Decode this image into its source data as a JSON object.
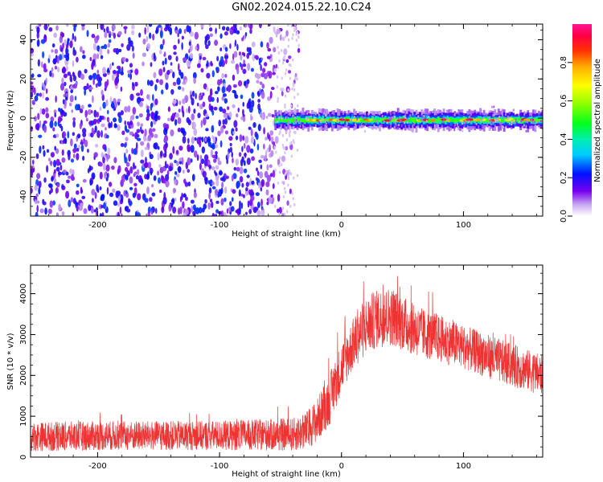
{
  "title": "GN02.2024.015.22.10.C24",
  "chart_data": [
    {
      "type": "heatmap",
      "xlabel": "Height of straight line (km)",
      "ylabel": "Frequency (Hz)",
      "xlim": [
        -255,
        165
      ],
      "ylim": [
        -50,
        48
      ],
      "xticks": [
        -200,
        -100,
        0,
        100
      ],
      "yticks": [
        -40,
        -20,
        0,
        20,
        40
      ],
      "colorbar": {
        "label": "Normalized spectral amplitude",
        "range": [
          0.0,
          1.0
        ],
        "ticks": [
          "0.0",
          "0.2",
          "0.4",
          "0.6",
          "0.8"
        ],
        "colormap": "gist_ncar_like"
      },
      "regions": [
        {
          "x": [
            -255,
            -55
          ],
          "freq": [
            -50,
            48
          ],
          "amplitude": [
            0.05,
            0.25
          ],
          "description": "broadband noise"
        },
        {
          "x": [
            -55,
            165
          ],
          "freq": [
            -4,
            2
          ],
          "amplitude": [
            0.3,
            0.95
          ],
          "center_freq": -1
        }
      ]
    },
    {
      "type": "line",
      "xlabel": "Height of straight line (km)",
      "ylabel": "SNR (10 * v/v)",
      "xlim": [
        -255,
        165
      ],
      "ylim": [
        0,
        4700
      ],
      "xticks": [
        -200,
        -100,
        0,
        100
      ],
      "yticks": [
        0,
        1000,
        2000,
        3000,
        4000
      ],
      "series": [
        {
          "color": "#ee3333",
          "envelope": {
            "x": [
              -255,
              -200,
              -100,
              -40,
              -30,
              -20,
              -10,
              0,
              10,
              20,
              30,
              40,
              50,
              60,
              80,
              100,
              130,
              165
            ],
            "mean": [
              500,
              520,
              530,
              550,
              620,
              900,
              1400,
              2200,
              2800,
              3200,
              3400,
              3450,
              3300,
              3100,
              2900,
              2700,
              2350,
              2000
            ],
            "spread": [
              400,
              400,
              400,
              450,
              500,
              600,
              700,
              700,
              700,
              800,
              800,
              800,
              750,
              700,
              650,
              600,
              600,
              550
            ]
          }
        }
      ]
    }
  ]
}
